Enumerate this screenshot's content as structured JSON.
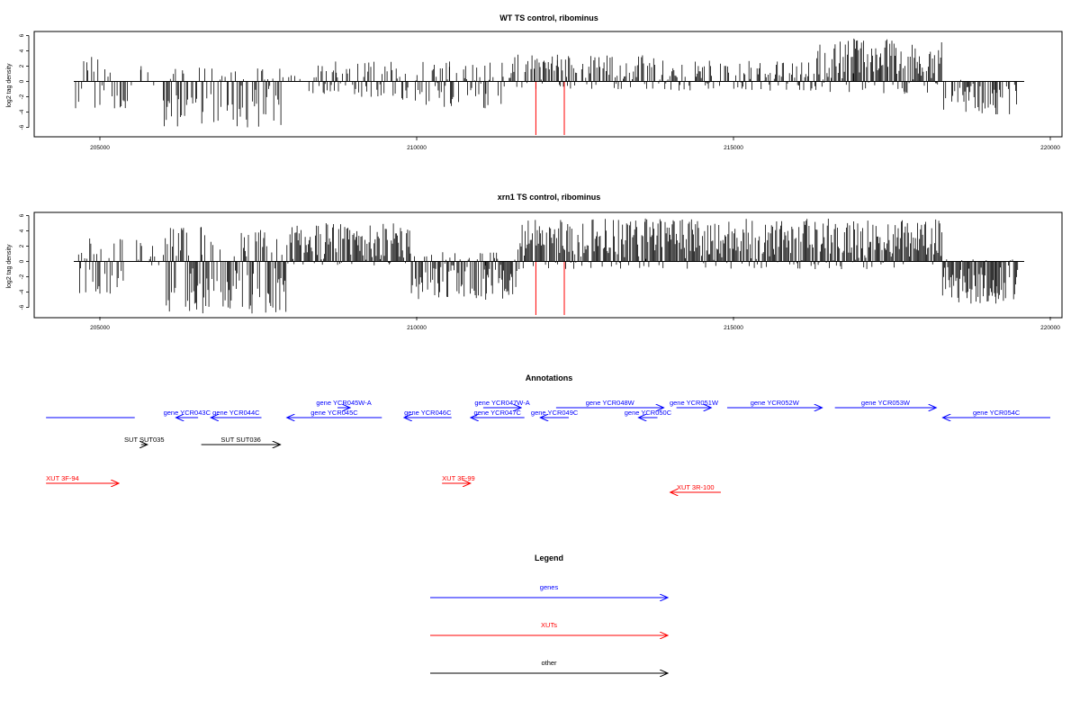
{
  "chart_data": [
    {
      "type": "bar",
      "title": "WT TS control, ribominus",
      "ylabel": "log2 tag density",
      "xlabel": "",
      "xlim": [
        204100,
        220400
      ],
      "ylim": [
        -7,
        6.5
      ],
      "x_ticks": [
        "205000",
        "210000",
        "215000",
        "220000"
      ],
      "y_ticks": [
        "6",
        "4",
        "2",
        "0",
        "-2",
        "-4",
        "-6"
      ],
      "segments": [
        {
          "from": 204600,
          "to": 205500,
          "lo": -3.5,
          "hi": 3.2,
          "density": 0.4
        },
        {
          "from": 205500,
          "to": 206000,
          "lo": -0.5,
          "hi": 2.0,
          "density": 0.1
        },
        {
          "from": 206000,
          "to": 207900,
          "lo": -6.0,
          "hi": 1.8,
          "density": 0.6
        },
        {
          "from": 207900,
          "to": 208300,
          "lo": -0.3,
          "hi": 0.8,
          "density": 0.2
        },
        {
          "from": 208300,
          "to": 209700,
          "lo": -2.0,
          "hi": 2.6,
          "density": 0.7
        },
        {
          "from": 209700,
          "to": 210100,
          "lo": -2.5,
          "hi": 1.0,
          "density": 0.4
        },
        {
          "from": 210100,
          "to": 211500,
          "lo": -3.5,
          "hi": 2.6,
          "density": 0.6
        },
        {
          "from": 211500,
          "to": 213900,
          "lo": -1.0,
          "hi": 3.5,
          "density": 0.7
        },
        {
          "from": 213900,
          "to": 216300,
          "lo": -1.2,
          "hi": 2.7,
          "density": 0.7
        },
        {
          "from": 216300,
          "to": 218300,
          "lo": -1.6,
          "hi": 5.6,
          "density": 0.95
        },
        {
          "from": 218300,
          "to": 219500,
          "lo": -4.3,
          "hi": 0.3,
          "density": 0.6
        }
      ],
      "markers": [
        {
          "x": 211880,
          "lo": -7.0,
          "hi": 0
        },
        {
          "x": 212330,
          "lo": -7.0,
          "hi": 0
        }
      ]
    },
    {
      "type": "bar",
      "title": "xrn1 TS control, ribominus",
      "ylabel": "log2 tag density",
      "xlabel": "",
      "xlim": [
        204100,
        220400
      ],
      "ylim": [
        -7,
        6.5
      ],
      "x_ticks": [
        "205000",
        "210000",
        "215000",
        "220000"
      ],
      "y_ticks": [
        "6",
        "4",
        "2",
        "0",
        "-2",
        "-4",
        "-6"
      ],
      "segments": [
        {
          "from": 204600,
          "to": 205400,
          "lo": -4.2,
          "hi": 3.0,
          "density": 0.6
        },
        {
          "from": 205400,
          "to": 206000,
          "lo": -0.5,
          "hi": 2.8,
          "density": 0.2
        },
        {
          "from": 206000,
          "to": 208000,
          "lo": -6.8,
          "hi": 4.5,
          "density": 0.9
        },
        {
          "from": 208000,
          "to": 209900,
          "lo": -0.5,
          "hi": 5.0,
          "density": 0.95
        },
        {
          "from": 209900,
          "to": 211600,
          "lo": -5.0,
          "hi": 1.2,
          "density": 0.9
        },
        {
          "from": 211600,
          "to": 218300,
          "lo": -1.0,
          "hi": 5.6,
          "density": 0.95
        },
        {
          "from": 218300,
          "to": 219500,
          "lo": -5.5,
          "hi": 0.3,
          "density": 0.95
        }
      ],
      "markers": [
        {
          "x": 211880,
          "lo": -7.0,
          "hi": 0
        },
        {
          "x": 212330,
          "lo": -7.0,
          "hi": 0
        }
      ]
    }
  ],
  "annotations": {
    "title": "Annotations",
    "colors": {
      "gene": "#0000ff",
      "xut": "#ff0000",
      "other": "#000000"
    },
    "features": [
      {
        "label": "",
        "kind": "gene",
        "start": 204150,
        "end": 205550,
        "dir": "none",
        "track": 0
      },
      {
        "label": "gene YCR043C",
        "kind": "gene",
        "start": 206200,
        "end": 206550,
        "dir": "left",
        "track": 0
      },
      {
        "label": "gene YCR044C",
        "kind": "gene",
        "start": 206750,
        "end": 207550,
        "dir": "left",
        "track": 0
      },
      {
        "label": "gene YCR045C",
        "kind": "gene",
        "start": 207950,
        "end": 209450,
        "dir": "left",
        "track": 0
      },
      {
        "label": "gene YCR045W-A",
        "kind": "gene",
        "start": 208750,
        "end": 208950,
        "dir": "right",
        "track": 1
      },
      {
        "label": "gene YCR046C",
        "kind": "gene",
        "start": 209800,
        "end": 210550,
        "dir": "left",
        "track": 0
      },
      {
        "label": "gene YCR047C",
        "kind": "gene",
        "start": 210850,
        "end": 211700,
        "dir": "left",
        "track": 0
      },
      {
        "label": "gene YCR047W-A",
        "kind": "gene",
        "start": 211050,
        "end": 211650,
        "dir": "right",
        "track": 1
      },
      {
        "label": "gene YCR048W",
        "kind": "gene",
        "start": 212200,
        "end": 213900,
        "dir": "right",
        "track": 1
      },
      {
        "label": "gene YCR049C",
        "kind": "gene",
        "start": 211950,
        "end": 212400,
        "dir": "left",
        "track": 0
      },
      {
        "label": "gene YCR050C",
        "kind": "gene",
        "start": 213500,
        "end": 213800,
        "dir": "left",
        "track": 0
      },
      {
        "label": "gene YCR051W",
        "kind": "gene",
        "start": 214100,
        "end": 214650,
        "dir": "right",
        "track": 1
      },
      {
        "label": "gene YCR052W",
        "kind": "gene",
        "start": 214900,
        "end": 216400,
        "dir": "right",
        "track": 1
      },
      {
        "label": "gene YCR053W",
        "kind": "gene",
        "start": 216600,
        "end": 218200,
        "dir": "right",
        "track": 1
      },
      {
        "label": "gene YCR054C",
        "kind": "gene",
        "start": 218300,
        "end": 220000,
        "dir": "left",
        "track": 0
      },
      {
        "label": "SUT SUT035",
        "kind": "other",
        "start": 205650,
        "end": 205750,
        "dir": "right",
        "track": 2
      },
      {
        "label": "SUT SUT036",
        "kind": "other",
        "start": 206600,
        "end": 207850,
        "dir": "right",
        "track": 2
      },
      {
        "label": "XUT 3F-94",
        "kind": "xut",
        "start": 204150,
        "end": 205300,
        "dir": "right",
        "track": 3
      },
      {
        "label": "XUT 3F-99",
        "kind": "xut",
        "start": 210400,
        "end": 210850,
        "dir": "right",
        "track": 3
      },
      {
        "label": "XUT 3R-100",
        "kind": "xut",
        "start": 214000,
        "end": 214800,
        "dir": "left",
        "track": 4
      }
    ]
  },
  "legend": {
    "title": "Legend",
    "items": [
      {
        "label": "genes",
        "color": "#0000ff"
      },
      {
        "label": "XUTs",
        "color": "#ff0000"
      },
      {
        "label": "other",
        "color": "#000000"
      }
    ]
  }
}
